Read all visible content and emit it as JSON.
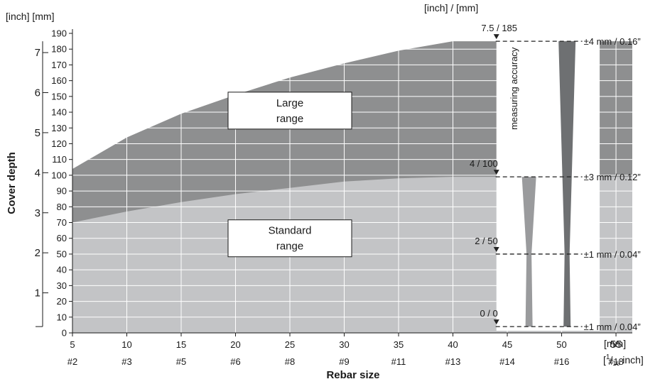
{
  "chart_data": {
    "type": "area",
    "ylabel": "Cover depth",
    "xlabel": "Rebar size",
    "y_unit_left": "[inch] [mm]",
    "x_unit_mm": "[mm]",
    "x_unit_inch": "[1/16 inch]",
    "top_unit": "[inch] / [mm]",
    "y_mm_ticks": [
      0,
      10,
      20,
      30,
      40,
      50,
      60,
      70,
      80,
      90,
      100,
      110,
      120,
      130,
      140,
      150,
      160,
      170,
      180,
      190
    ],
    "y_inch_ticks": [
      "1",
      "2",
      "3",
      "4",
      "5",
      "6",
      "7"
    ],
    "x_mm_ticks": [
      "5",
      "10",
      "15",
      "20",
      "25",
      "30",
      "35",
      "40",
      "45",
      "50",
      "55"
    ],
    "x_rebar_ticks": [
      "#2",
      "#3",
      "#5",
      "#6",
      "#8",
      "#9",
      "#11",
      "#13",
      "#14",
      "#16",
      "#18"
    ],
    "xlim": [
      5,
      56.5
    ],
    "ylim_mm": [
      0,
      190
    ],
    "series": [
      {
        "label": [
          "Large",
          "range"
        ],
        "x": [
          5,
          10,
          15,
          20,
          25,
          30,
          35,
          40,
          44
        ],
        "y": [
          104,
          124,
          139,
          151,
          162,
          171,
          179,
          185,
          185
        ],
        "extension": {
          "x": [
            56.5
          ],
          "y": [
            185
          ]
        },
        "color": "#8e8f90"
      },
      {
        "label": [
          "Standard",
          "range"
        ],
        "x": [
          5,
          10,
          15,
          20,
          25,
          30,
          35,
          40,
          44
        ],
        "y": [
          70,
          77,
          83,
          88,
          92,
          96,
          98,
          99,
          99
        ],
        "extension": {
          "x": [
            56.5
          ],
          "y": [
            99
          ]
        },
        "color": "#c3c4c6"
      }
    ],
    "accuracy_panel": {
      "title": "measuring accuracy",
      "x_range": [
        44,
        53.5
      ],
      "markers": [
        {
          "top_label": "7.5 / 185",
          "depth_mm": 185,
          "accuracy": "±4 mm / 0.16”"
        },
        {
          "top_label": "4 / 100",
          "depth_mm": 99,
          "accuracy": "±3 mm / 0.12”"
        },
        {
          "top_label": "2 / 50",
          "depth_mm": 50,
          "accuracy": "±1 mm / 0.04”"
        },
        {
          "top_label": "0 / 0",
          "depth_mm": 4,
          "accuracy": "±1 mm / 0.04”"
        }
      ],
      "colors": {
        "dark": "#6e7072",
        "mid": "#9a9b9d"
      }
    },
    "grid": true,
    "legend": "none"
  }
}
